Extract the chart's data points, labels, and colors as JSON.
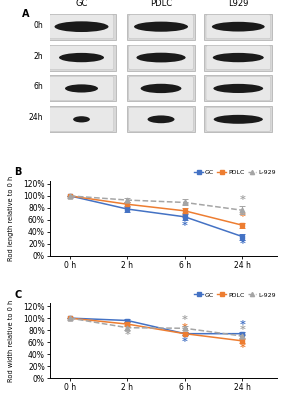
{
  "panel_B": {
    "x_labels": [
      "0 h",
      "2 h",
      "6 h",
      "24 h"
    ],
    "GC_mean": [
      100,
      78,
      65,
      32
    ],
    "GC_err": [
      0.5,
      5,
      5,
      5
    ],
    "PDLC_mean": [
      100,
      86,
      75,
      51
    ],
    "PDLC_err": [
      0.5,
      4,
      4,
      4
    ],
    "L929_mean": [
      100,
      93,
      89,
      76
    ],
    "L929_err": [
      0.5,
      4,
      5,
      7
    ],
    "ylabel": "Rod length relative to 0 h",
    "ylim": [
      0,
      125
    ],
    "yticks": [
      0,
      20,
      40,
      60,
      80,
      100,
      120
    ],
    "yticklabels": [
      "0%",
      "20%",
      "40%",
      "60%",
      "80%",
      "100%",
      "120%"
    ]
  },
  "panel_C": {
    "x_labels": [
      "0 h",
      "2 h",
      "6 h",
      "24 h"
    ],
    "GC_mean": [
      100,
      96,
      74,
      74
    ],
    "GC_err": [
      0.5,
      2,
      3,
      3
    ],
    "PDLC_mean": [
      100,
      90,
      74,
      62
    ],
    "PDLC_err": [
      0.5,
      3,
      3,
      3
    ],
    "L929_mean": [
      100,
      84,
      83,
      70
    ],
    "L929_err": [
      0.5,
      4,
      3,
      3
    ],
    "ylabel": "Rod width relative to 0 h",
    "ylim": [
      0,
      125
    ],
    "yticks": [
      0,
      20,
      40,
      60,
      80,
      100,
      120
    ],
    "yticklabels": [
      "0%",
      "20%",
      "40%",
      "60%",
      "80%",
      "100%",
      "120%"
    ]
  },
  "colors": {
    "GC": "#4472c4",
    "PDLC": "#ed7d31",
    "L929": "#a5a5a5"
  },
  "col_labels": [
    "GC",
    "PDLC",
    "L929"
  ],
  "row_labels": [
    "0h",
    "2h",
    "6h",
    "24h"
  ]
}
